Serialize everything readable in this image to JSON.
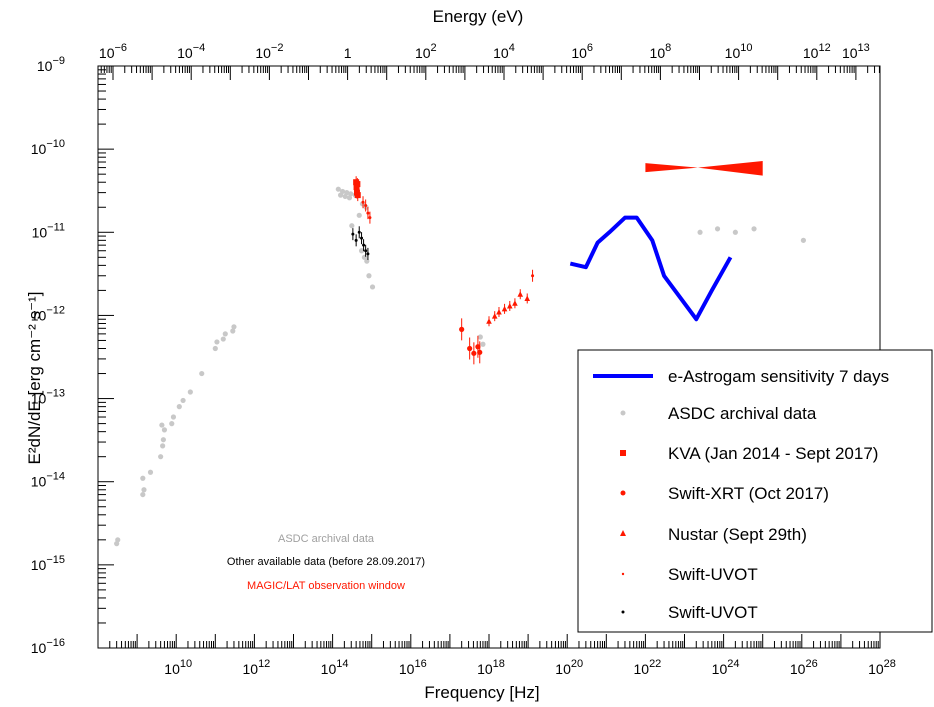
{
  "chart_data": {
    "type": "scatter",
    "title": "",
    "xlabel": "Frequency [Hz]",
    "ylabel": "E²dN/dE  [erg cm⁻² s⁻¹]",
    "top_axis_label": "Energy (eV)",
    "xlim": [
      100000000.0,
      1e+28
    ],
    "ylim": [
      1e-16,
      1e-09
    ],
    "xscale": "log",
    "yscale": "log",
    "x_tick_exponents": [
      10,
      12,
      14,
      16,
      18,
      20,
      22,
      24,
      26,
      28
    ],
    "y_tick_exponents": [
      -16,
      -15,
      -14,
      -13,
      -12,
      -11,
      -10,
      -9
    ],
    "top_tick_exponents": [
      -6,
      -4,
      -2,
      0,
      2,
      4,
      6,
      8,
      10,
      12,
      13
    ],
    "top_tick_text": {
      "0": "1"
    },
    "grid": false,
    "legend_position": "bottom-right",
    "series": [
      {
        "name": "ASDC archival data",
        "marker": "dot",
        "color": "#c8c8c8",
        "points": [
          [
            300000000.0,
            1.8e-15
          ],
          [
            320000000.0,
            2e-15
          ],
          [
            1400000000.0,
            7e-15
          ],
          [
            1500000000.0,
            8e-15
          ],
          [
            1400000000.0,
            1.1e-14
          ],
          [
            2200000000.0,
            1.3e-14
          ],
          [
            4000000000.0,
            2e-14
          ],
          [
            4500000000.0,
            2.7e-14
          ],
          [
            4700000000.0,
            3.2e-14
          ],
          [
            4300000000.0,
            4.8e-14
          ],
          [
            5000000000.0,
            4.2e-14
          ],
          [
            7700000000.0,
            5e-14
          ],
          [
            8500000000.0,
            6e-14
          ],
          [
            12000000000.0,
            8e-14
          ],
          [
            15000000000.0,
            9.5e-14
          ],
          [
            23000000000.0,
            1.2e-13
          ],
          [
            45000000000.0,
            2e-13
          ],
          [
            100000000000.0,
            4e-13
          ],
          [
            110000000000.0,
            4.8e-13
          ],
          [
            160000000000.0,
            5.2e-13
          ],
          [
            180000000000.0,
            6e-13
          ],
          [
            280000000000.0,
            6.5e-13
          ],
          [
            300000000000.0,
            7.3e-13
          ],
          [
            140000000000000.0,
            3.3e-11
          ],
          [
            180000000000000.0,
            3.1e-11
          ],
          [
            230000000000000.0,
            3e-11
          ],
          [
            290000000000000.0,
            2.9e-11
          ],
          [
            380000000000000.0,
            2.8e-11
          ],
          [
            160000000000000.0,
            2.8e-11
          ],
          [
            210000000000000.0,
            2.7e-11
          ],
          [
            270000000000000.0,
            2.6e-11
          ],
          [
            310000000000000.0,
            1.2e-11
          ],
          [
            480000000000000.0,
            1.6e-11
          ],
          [
            580000000000000.0,
            2.2e-11
          ],
          [
            720000000000000.0,
            2e-11
          ],
          [
            550000000000000.0,
            6e-12
          ],
          [
            650000000000000.0,
            5e-12
          ],
          [
            750000000000000.0,
            4.5e-12
          ],
          [
            850000000000000.0,
            3e-12
          ],
          [
            1050000000000000.0,
            2.2e-12
          ],
          [
            6e+17,
            5.5e-13
          ],
          [
            7e+17,
            4.5e-13
          ],
          [
            2.5e+23,
            1e-11
          ],
          [
            7e+23,
            1.1e-11
          ],
          [
            2e+24,
            1e-11
          ],
          [
            6e+24,
            1.1e-11
          ],
          [
            1.1e+26,
            8e-12
          ]
        ]
      },
      {
        "name": "KVA (Jan 2014 - Sept 2017)",
        "marker": "square",
        "color": "#ff1800",
        "points": [
          [
            400000000000000.0,
            4e-11
          ],
          [
            410000000000000.0,
            3.5e-11
          ],
          [
            420000000000000.0,
            3e-11
          ],
          [
            430000000000000.0,
            3.8e-11
          ],
          [
            440000000000000.0,
            2.8e-11
          ]
        ]
      },
      {
        "name": "Swift-XRT (Oct 2017)",
        "marker": "circle",
        "color": "#ff1800",
        "points": [
          [
            2e+17,
            6.8e-13
          ],
          [
            3.2e+17,
            4e-13
          ],
          [
            4.1e+17,
            3.5e-13
          ],
          [
            5.2e+17,
            4.2e-13
          ],
          [
            5.8e+17,
            3.6e-13
          ]
        ]
      },
      {
        "name": "Nustar (Sept 29th)",
        "marker": "triangle",
        "color": "#ff1800",
        "points": [
          [
            1e+18,
            8.5e-13
          ],
          [
            1.4e+18,
            9.8e-13
          ],
          [
            1.8e+18,
            1.1e-12
          ],
          [
            2.5e+18,
            1.2e-12
          ],
          [
            3.4e+18,
            1.3e-12
          ],
          [
            4.6e+18,
            1.4e-12
          ],
          [
            6.3e+18,
            1.8e-12
          ],
          [
            9.5e+18,
            1.6e-12
          ]
        ]
      },
      {
        "name": "Swift-UVOT",
        "marker": "small",
        "color": "#ff1800",
        "points": [
          [
            600000000000000.0,
            2.3e-11
          ],
          [
            700000000000000.0,
            2.1e-11
          ],
          [
            800000000000000.0,
            1.7e-11
          ],
          [
            900000000000000.0,
            1.5e-11
          ],
          [
            1.3e+19,
            3e-12
          ]
        ]
      },
      {
        "name": "Swift-UVOT",
        "marker": "small",
        "color": "#000000",
        "points": [
          [
            330000000000000.0,
            9.5e-12
          ],
          [
            400000000000000.0,
            8e-12
          ],
          [
            480000000000000.0,
            1e-11
          ],
          [
            550000000000000.0,
            8.5e-12
          ],
          [
            620000000000000.0,
            7e-12
          ],
          [
            700000000000000.0,
            6e-12
          ],
          [
            800000000000000.0,
            5.5e-12
          ]
        ]
      },
      {
        "name": "e-Astrogam sensitivity 7 days",
        "marker": "line",
        "color": "#0000ff",
        "points": [
          [
            1.2e+20,
            4.2e-12
          ],
          [
            3e+20,
            3.8e-12
          ],
          [
            6e+20,
            7.5e-12
          ],
          [
            1.2e+21,
            1e-11
          ],
          [
            3e+21,
            1.5e-11
          ],
          [
            6e+21,
            1.5e-11
          ],
          [
            1.5e+22,
            8e-12
          ],
          [
            3e+22,
            3e-12
          ],
          [
            2e+23,
            9e-13
          ],
          [
            5e+23,
            2e-12
          ],
          [
            1.5e+24,
            5e-12
          ]
        ]
      }
    ],
    "bowtie": {
      "color": "#ff1800",
      "x": [
        1e+22,
        1e+25
      ],
      "pivot_x": 2.2e+23,
      "pivot_y": 6e-11,
      "low_end": [
        5.3e-11,
        6.8e-11
      ],
      "high_end": [
        4.8e-11,
        7.2e-11
      ]
    },
    "legend": [
      "e-Astrogam sensitivity 7 days",
      "ASDC archival data",
      "KVA (Jan 2014 - Sept 2017)",
      "Swift-XRT (Oct 2017)",
      "Nustar (Sept 29th)",
      "Swift-UVOT",
      "Swift-UVOT"
    ],
    "annotations": [
      {
        "text": "ASDC archival data",
        "color": "#a0a0a0"
      },
      {
        "text": "Other available data (before 28.09.2017)",
        "color": "#000000"
      },
      {
        "text": "MAGIC/LAT observation window",
        "color": "#ff1800"
      }
    ]
  }
}
